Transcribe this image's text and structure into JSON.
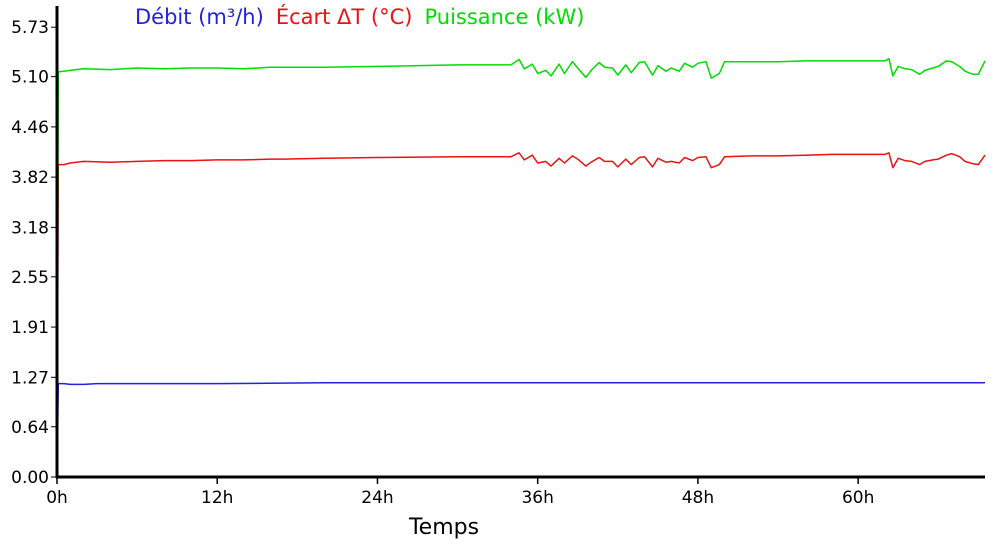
{
  "chart_data": {
    "type": "line",
    "xlabel": "Temps",
    "ylabel": "",
    "x_unit": "h",
    "xlim": [
      0,
      69.5
    ],
    "ylim": [
      0,
      6.0
    ],
    "yticks": [
      "0.00",
      "0.64",
      "1.27",
      "1.91",
      "2.55",
      "3.18",
      "3.82",
      "4.46",
      "5.10",
      "5.73"
    ],
    "xticks": [
      "0h",
      "12h",
      "24h",
      "36h",
      "48h",
      "60h"
    ],
    "xtick_values": [
      0,
      12,
      24,
      36,
      48,
      60
    ],
    "grid": false,
    "legend_position": "top",
    "series": [
      {
        "name": "Débit (m³/h)",
        "color": "#2222dd",
        "x": [
          0,
          0.1,
          0.5,
          1,
          2,
          3,
          5,
          8,
          12,
          20,
          30,
          40,
          50,
          60,
          69.5
        ],
        "y": [
          0.0,
          1.19,
          1.19,
          1.18,
          1.18,
          1.19,
          1.19,
          1.19,
          1.19,
          1.2,
          1.2,
          1.2,
          1.2,
          1.2,
          1.2
        ]
      },
      {
        "name": "Écart ΔT (°C)",
        "color": "#ee1111",
        "x": [
          0,
          0.1,
          0.5,
          1,
          2,
          4,
          6,
          8,
          10,
          12,
          14,
          16,
          17,
          20,
          24,
          30,
          34,
          34.6,
          35,
          35.6,
          36,
          36.6,
          37,
          37.6,
          38,
          38.6,
          39,
          39.6,
          40,
          40.6,
          41,
          41.6,
          42,
          42.6,
          43,
          43.6,
          44,
          44.6,
          45,
          45.6,
          46,
          46.6,
          47,
          47.6,
          48,
          48.6,
          49,
          49.6,
          50,
          52,
          54,
          56,
          58,
          60,
          62,
          62.3,
          62.6,
          63,
          63.5,
          64,
          64.6,
          65,
          65.6,
          66,
          66.6,
          67,
          67.6,
          68,
          68.6,
          69,
          69.5
        ],
        "y": [
          0.0,
          3.98,
          3.98,
          4.0,
          4.02,
          4.01,
          4.02,
          4.03,
          4.03,
          4.04,
          4.04,
          4.05,
          4.05,
          4.06,
          4.07,
          4.08,
          4.08,
          4.13,
          4.04,
          4.1,
          4.0,
          4.02,
          3.96,
          4.06,
          4.0,
          4.09,
          4.05,
          3.96,
          4.01,
          4.07,
          4.02,
          4.02,
          3.95,
          4.05,
          3.98,
          4.07,
          4.08,
          3.95,
          4.06,
          4.01,
          4.02,
          4.0,
          4.07,
          4.03,
          4.07,
          4.08,
          3.94,
          3.98,
          4.08,
          4.09,
          4.09,
          4.1,
          4.11,
          4.11,
          4.11,
          4.13,
          3.94,
          4.06,
          4.03,
          4.02,
          3.98,
          4.02,
          4.04,
          4.05,
          4.1,
          4.12,
          4.08,
          4.02,
          3.99,
          3.98,
          4.1
        ]
      },
      {
        "name": "Puissance (kW)",
        "color": "#00dd00",
        "x": [
          0,
          0.1,
          0.5,
          1,
          2,
          4,
          6,
          8,
          10,
          12,
          14,
          16,
          17,
          20,
          24,
          30,
          34,
          34.6,
          35,
          35.6,
          36,
          36.6,
          37,
          37.6,
          38,
          38.6,
          39,
          39.6,
          40,
          40.6,
          41,
          41.6,
          42,
          42.6,
          43,
          43.6,
          44,
          44.6,
          45,
          45.6,
          46,
          46.6,
          47,
          47.6,
          48,
          48.6,
          49,
          49.6,
          50,
          52,
          54,
          56,
          58,
          60,
          62,
          62.3,
          62.6,
          63,
          63.5,
          64,
          64.6,
          65,
          65.6,
          66,
          66.6,
          67,
          67.6,
          68,
          68.6,
          69,
          69.5
        ],
        "y": [
          0.0,
          5.16,
          5.17,
          5.18,
          5.2,
          5.19,
          5.21,
          5.2,
          5.21,
          5.21,
          5.2,
          5.22,
          5.22,
          5.22,
          5.23,
          5.25,
          5.25,
          5.32,
          5.2,
          5.26,
          5.14,
          5.18,
          5.11,
          5.26,
          5.14,
          5.29,
          5.21,
          5.09,
          5.18,
          5.28,
          5.22,
          5.21,
          5.12,
          5.25,
          5.15,
          5.28,
          5.29,
          5.12,
          5.24,
          5.17,
          5.21,
          5.17,
          5.27,
          5.22,
          5.27,
          5.29,
          5.08,
          5.14,
          5.29,
          5.29,
          5.29,
          5.3,
          5.3,
          5.3,
          5.3,
          5.33,
          5.11,
          5.23,
          5.2,
          5.19,
          5.13,
          5.18,
          5.21,
          5.23,
          5.3,
          5.29,
          5.23,
          5.17,
          5.13,
          5.13,
          5.3
        ]
      }
    ]
  }
}
